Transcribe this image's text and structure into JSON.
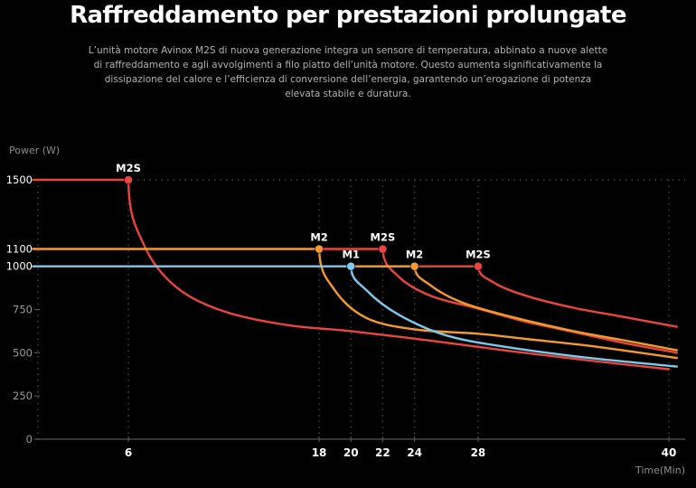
{
  "page": {
    "title": "Raffreddamento per prestazioni prolungate",
    "description": "L’unità motore Avinox M2S di nuova generazione integra un sensore di temperatura, abbinato a nuove alette di raffreddamento e agli avvolgimenti a filo piatto dell’unità motore. Questo aumenta significativamente la dissipazione del calore e l’efficienza di conversione dell’energia, garantendo un’erogazione di potenza elevata stabile e duratura."
  },
  "chart_data": {
    "type": "line",
    "title": "",
    "xlabel": "Time(Min)",
    "ylabel": "Power (W)",
    "xlim": [
      0,
      40.5
    ],
    "ylim": [
      0,
      1500
    ],
    "x_ticks": [
      6,
      18,
      20,
      22,
      24,
      28,
      40
    ],
    "y_ticks": [
      0,
      250,
      500,
      750,
      1000,
      1100,
      1500
    ],
    "grid": "dotted vertical and horizontal at the marked points",
    "legend": "none",
    "colors": {
      "red": "#e8463f",
      "orange": "#f49a32",
      "blue": "#7ec9ec",
      "axis": "#555555",
      "grid": "#444444"
    },
    "series": [
      {
        "name": "M2S",
        "color": "red",
        "points": [
          [
            0,
            1500
          ],
          [
            6,
            1500
          ],
          [
            7,
            1120
          ],
          [
            9,
            880
          ],
          [
            12,
            740
          ],
          [
            16,
            660
          ],
          [
            20,
            625
          ],
          [
            25,
            570
          ],
          [
            30,
            510
          ],
          [
            35,
            455
          ],
          [
            40,
            405
          ]
        ]
      },
      {
        "name": "M2S",
        "color": "red",
        "points": [
          [
            18,
            1100
          ],
          [
            22,
            1100
          ],
          [
            23,
            940
          ],
          [
            25,
            830
          ],
          [
            28,
            755
          ],
          [
            31,
            680
          ],
          [
            34,
            620
          ],
          [
            37,
            560
          ],
          [
            40.5,
            500
          ]
        ]
      },
      {
        "name": "M2S",
        "color": "red",
        "points": [
          [
            20,
            1000
          ],
          [
            28,
            1000
          ],
          [
            29,
            905
          ],
          [
            31,
            830
          ],
          [
            34,
            760
          ],
          [
            37,
            710
          ],
          [
            40.5,
            650
          ]
        ]
      },
      {
        "name": "M2",
        "color": "orange",
        "points": [
          [
            0,
            1100
          ],
          [
            18,
            1100
          ],
          [
            19,
            860
          ],
          [
            21,
            700
          ],
          [
            24,
            635
          ],
          [
            28,
            610
          ],
          [
            31,
            580
          ],
          [
            35,
            540
          ],
          [
            40.5,
            470
          ]
        ]
      },
      {
        "name": "M2",
        "color": "orange",
        "points": [
          [
            20,
            1000
          ],
          [
            24,
            1000
          ],
          [
            25,
            890
          ],
          [
            27,
            790
          ],
          [
            30,
            710
          ],
          [
            34,
            625
          ],
          [
            37,
            575
          ],
          [
            40.5,
            515
          ]
        ]
      },
      {
        "name": "M1",
        "color": "blue",
        "points": [
          [
            0,
            1000
          ],
          [
            20,
            1000
          ],
          [
            21,
            860
          ],
          [
            23,
            720
          ],
          [
            26,
            600
          ],
          [
            30,
            530
          ],
          [
            35,
            470
          ],
          [
            40.5,
            420
          ]
        ]
      }
    ],
    "markers": [
      {
        "label": "M2S",
        "x": 6,
        "y": 1500,
        "color": "red"
      },
      {
        "label": "M2",
        "x": 18,
        "y": 1100,
        "color": "orange"
      },
      {
        "label": "M2S",
        "x": 22,
        "y": 1100,
        "color": "red"
      },
      {
        "label": "M1",
        "x": 20,
        "y": 1000,
        "color": "blue"
      },
      {
        "label": "M2",
        "x": 24,
        "y": 1000,
        "color": "orange"
      },
      {
        "label": "M2S",
        "x": 28,
        "y": 1000,
        "color": "red"
      }
    ]
  }
}
